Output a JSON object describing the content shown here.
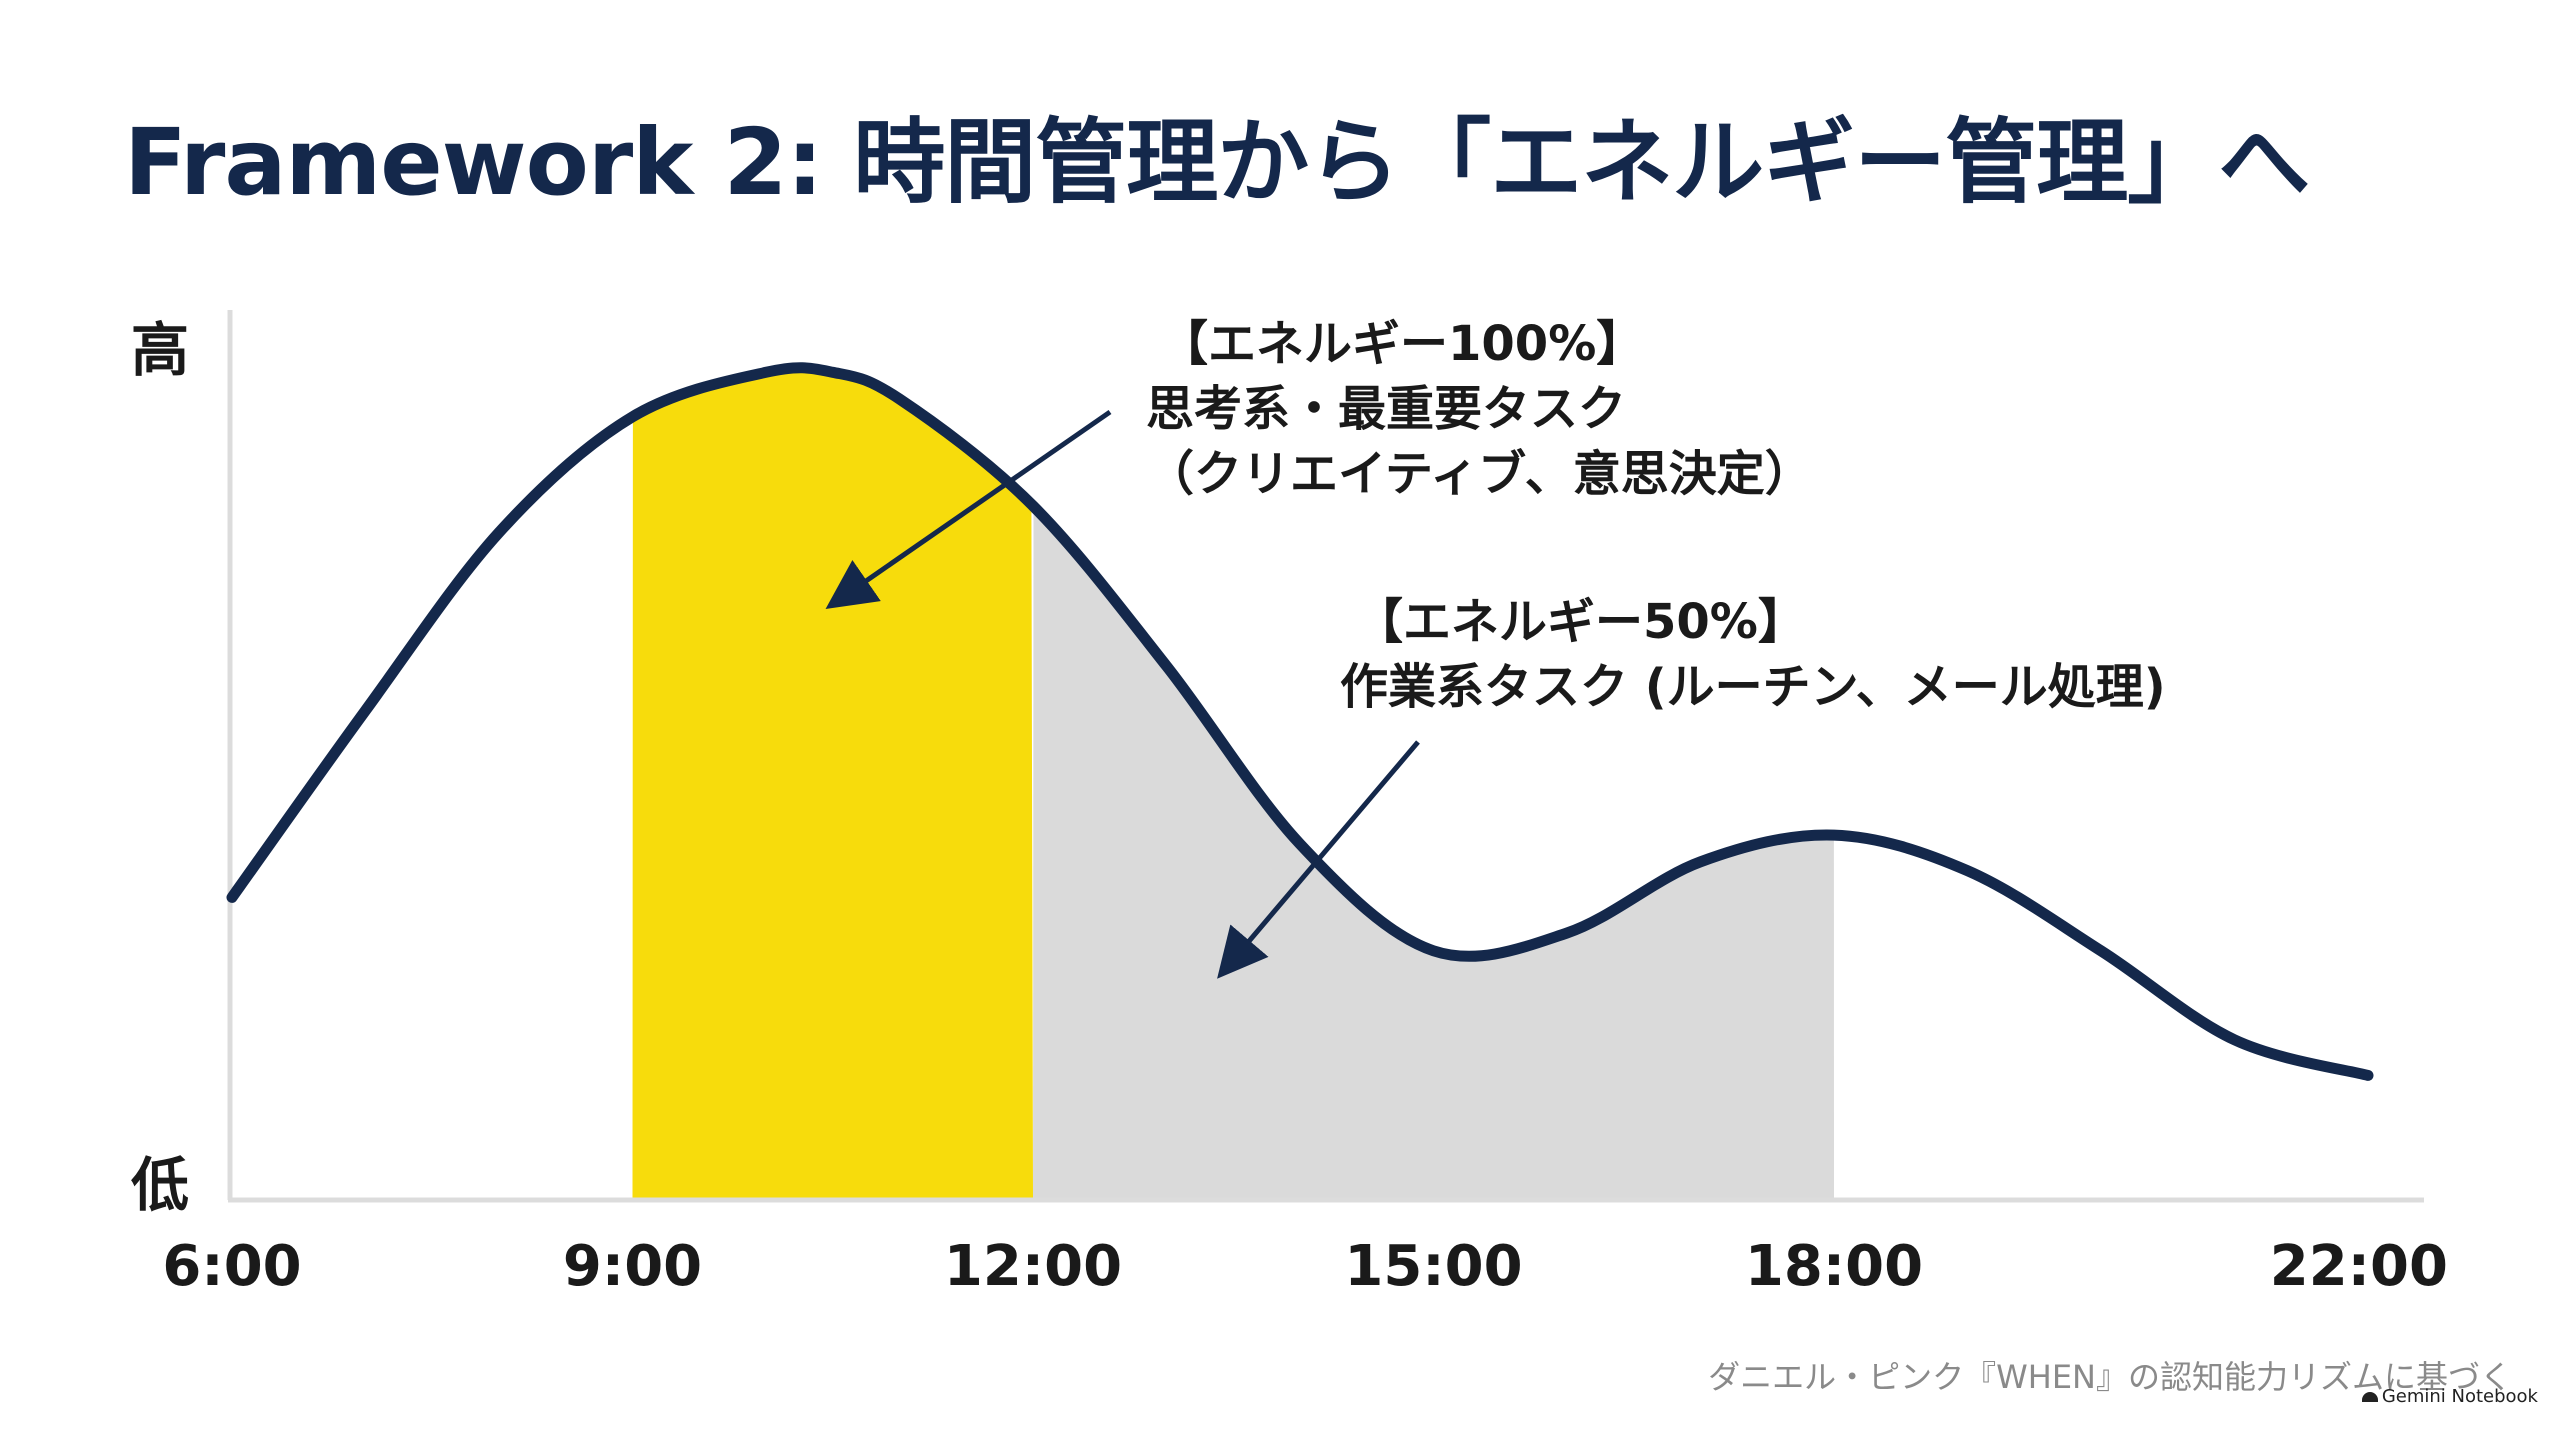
{
  "title": "Framework 2: 時間管理から「エネルギー管理」へ",
  "footer": "ダニエル・ピンク『WHEN』の認知能力リズムに基づく",
  "badge": "Gemini Notebook",
  "colors": {
    "curve": "#14284b",
    "peak_zone": "#f7dc0c",
    "trough_zone": "#dadada",
    "axis": "#dcdcdc",
    "arrow": "#14284b"
  },
  "chart_data": {
    "type": "line",
    "title": "Framework 2: 時間管理から「エネルギー管理」へ",
    "xlabel": "",
    "ylabel": "",
    "y_high_label": "高",
    "y_low_label": "低",
    "x_ticks": [
      "6:00",
      "9:00",
      "12:00",
      "15:00",
      "18:00",
      "22:00"
    ],
    "x_range": [
      6,
      22
    ],
    "ylim": [
      0,
      100
    ],
    "grid": false,
    "series": [
      {
        "x": [
          6,
          7,
          8,
          9,
          10,
          10.5,
          11,
          12,
          13,
          14,
          15,
          16,
          17,
          18,
          19,
          20,
          21,
          22
        ],
        "values": [
          34,
          55,
          75,
          88,
          93,
          93,
          90,
          78,
          60,
          40,
          28,
          30,
          38,
          41,
          37,
          28,
          18,
          14
        ]
      }
    ],
    "highlight_bands": [
      {
        "x_start": 9,
        "x_end": 12,
        "color": "#f7dc0c"
      },
      {
        "x_start": 12,
        "x_end": 18,
        "color": "#dadada"
      }
    ],
    "annotations": [
      {
        "lines": [
          "【エネルギー100%】",
          "思考系・最重要タスク",
          "（クリエイティブ、意思決定）"
        ],
        "arrow_target_x": 10.6,
        "arrow_target_y": 68
      },
      {
        "lines": [
          "【エネルギー50%】",
          "作業系タスク (ルーチン、メール処理)"
        ],
        "arrow_target_x": 13.5,
        "arrow_target_y": 27
      }
    ]
  }
}
